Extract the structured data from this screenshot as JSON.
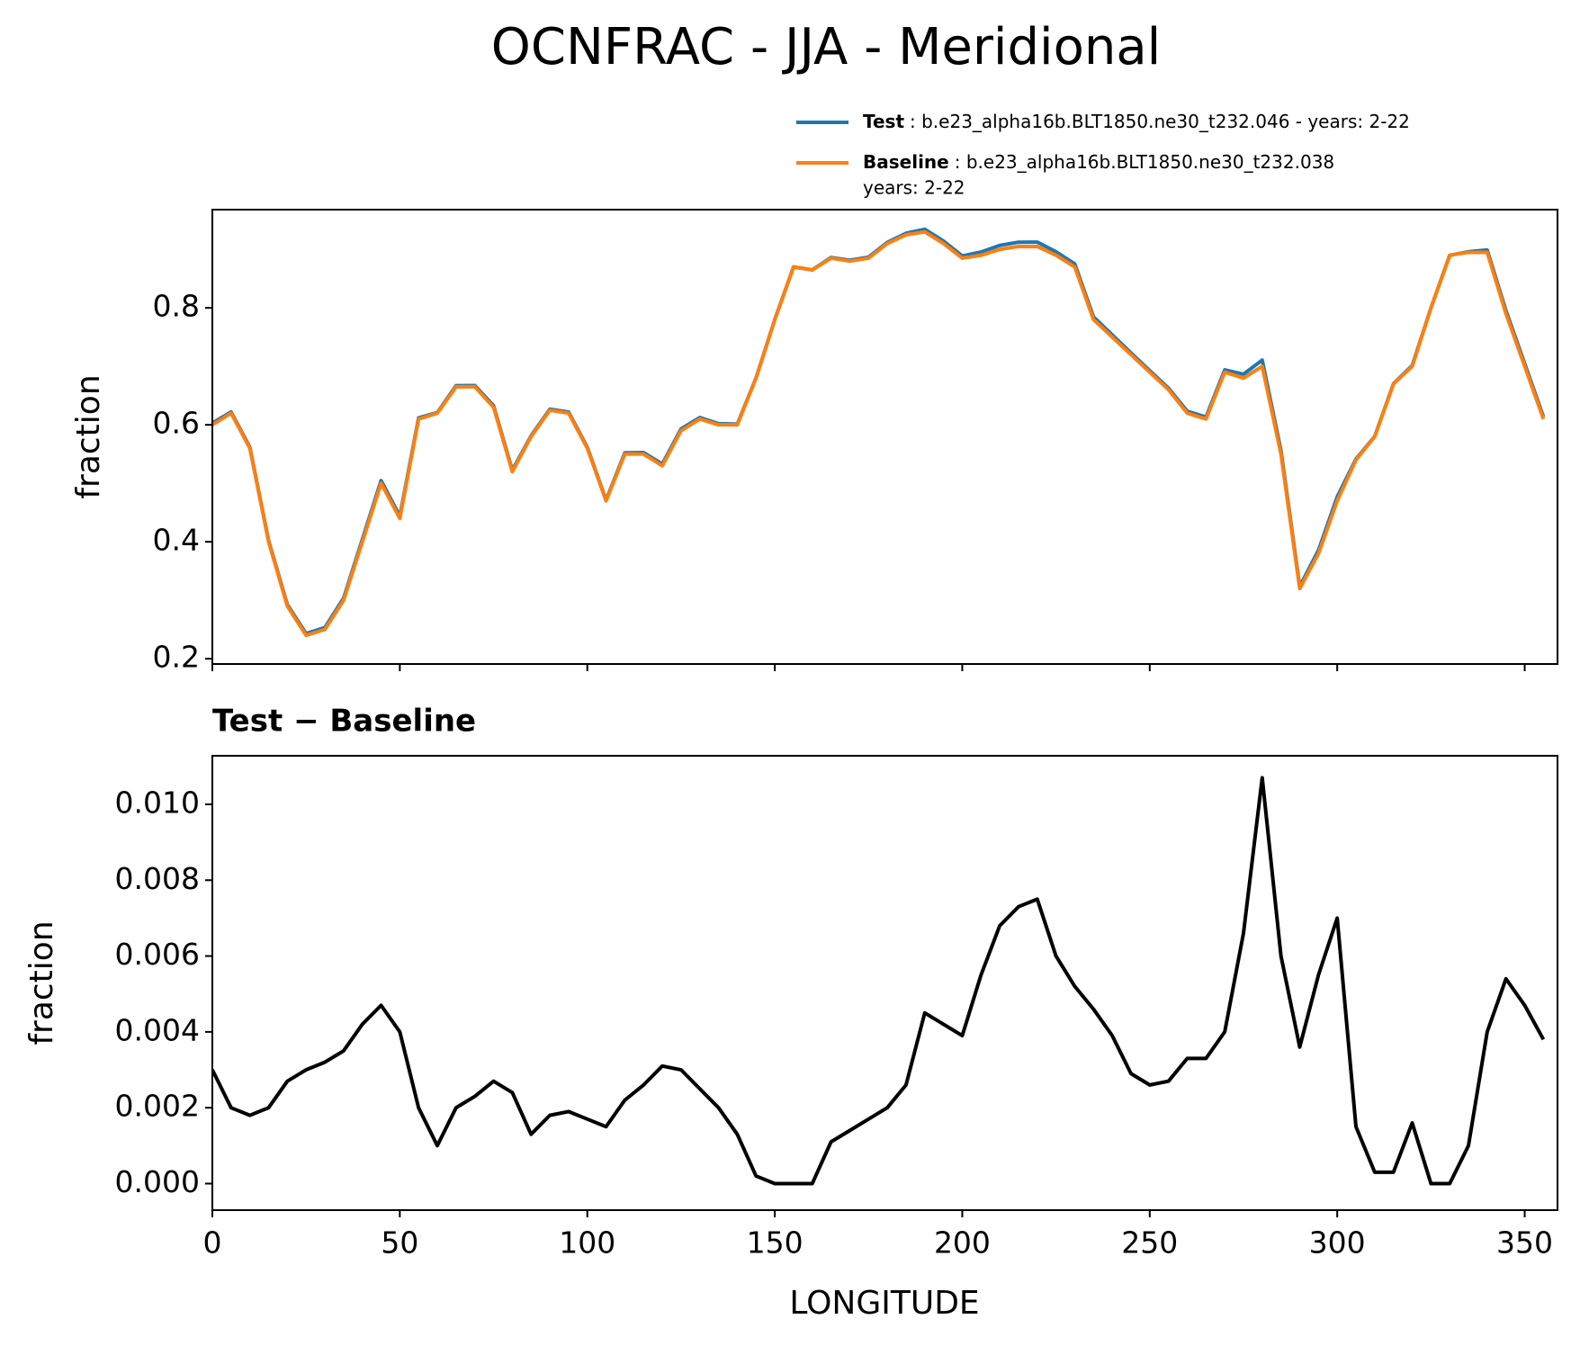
{
  "chart_data": [
    {
      "type": "line",
      "title": "OCNFRAC - JJA - Meridional",
      "ylabel": "fraction",
      "x": [
        0,
        5,
        10,
        15,
        20,
        25,
        30,
        35,
        40,
        45,
        50,
        55,
        60,
        65,
        70,
        75,
        80,
        85,
        90,
        95,
        100,
        105,
        110,
        115,
        120,
        125,
        130,
        135,
        140,
        145,
        150,
        155,
        160,
        165,
        170,
        175,
        180,
        185,
        190,
        195,
        200,
        205,
        210,
        215,
        220,
        225,
        230,
        235,
        240,
        245,
        250,
        255,
        260,
        265,
        270,
        275,
        280,
        285,
        290,
        295,
        300,
        305,
        310,
        315,
        320,
        325,
        330,
        335,
        340,
        345,
        350,
        355
      ],
      "series": [
        {
          "name": "Test",
          "legend_text": [
            ": b.e23_alpha16b.BLT1850.ne30_t232.046 - years: 2-22"
          ],
          "color": "#1f77b4",
          "values": [
            0.603,
            0.622,
            0.5618,
            0.402,
            0.2927,
            0.243,
            0.2532,
            0.3035,
            0.4042,
            0.5047,
            0.444,
            0.612,
            0.621,
            0.667,
            0.6673,
            0.6327,
            0.5224,
            0.5813,
            0.6268,
            0.6219,
            0.5617,
            0.4715,
            0.5522,
            0.5526,
            0.5331,
            0.593,
            0.6125,
            0.602,
            0.6013,
            0.6802,
            0.78,
            0.87,
            0.865,
            0.8861,
            0.8814,
            0.8867,
            0.912,
            0.9276,
            0.9345,
            0.9142,
            0.8889,
            0.8955,
            0.9068,
            0.9123,
            0.9125,
            0.896,
            0.8752,
            0.7846,
            0.7539,
            0.7229,
            0.6926,
            0.6627,
            0.6233,
            0.6133,
            0.694,
            0.6866,
            0.7107,
            0.556,
            0.3236,
            0.3855,
            0.477,
            0.5415,
            0.5803,
            0.6703,
            0.7016,
            0.8,
            0.89,
            0.896,
            0.899,
            0.7954,
            0.7047,
            0.6138
          ]
        },
        {
          "name": "Baseline",
          "legend_text": [
            ": b.e23_alpha16b.BLT1850.ne30_t232.038",
            "years: 2-22"
          ],
          "color": "#ff7f0e",
          "values": [
            0.6,
            0.62,
            0.56,
            0.4,
            0.29,
            0.24,
            0.25,
            0.3,
            0.4,
            0.5,
            0.44,
            0.61,
            0.62,
            0.665,
            0.665,
            0.63,
            0.52,
            0.58,
            0.625,
            0.62,
            0.56,
            0.47,
            0.55,
            0.55,
            0.53,
            0.59,
            0.61,
            0.6,
            0.6,
            0.68,
            0.78,
            0.87,
            0.865,
            0.885,
            0.88,
            0.885,
            0.91,
            0.925,
            0.93,
            0.91,
            0.885,
            0.89,
            0.9,
            0.905,
            0.905,
            0.89,
            0.87,
            0.78,
            0.75,
            0.72,
            0.69,
            0.66,
            0.62,
            0.61,
            0.69,
            0.68,
            0.7,
            0.55,
            0.32,
            0.38,
            0.47,
            0.54,
            0.58,
            0.67,
            0.7,
            0.8,
            0.89,
            0.895,
            0.895,
            0.79,
            0.7,
            0.61
          ]
        }
      ],
      "xlim": [
        0,
        358.75
      ],
      "xticks": [
        0,
        50,
        100,
        150,
        200,
        250,
        300,
        350
      ],
      "ylim": [
        0.191,
        0.968
      ],
      "yticks": [
        0.2,
        0.4,
        0.6,
        0.8
      ]
    },
    {
      "type": "line",
      "subtitle": "Test − Baseline",
      "ylabel": "fraction",
      "xlabel": "LONGITUDE",
      "color": "#000000",
      "x": [
        0,
        5,
        10,
        15,
        20,
        25,
        30,
        35,
        40,
        45,
        50,
        55,
        60,
        65,
        70,
        75,
        80,
        85,
        90,
        95,
        100,
        105,
        110,
        115,
        120,
        125,
        130,
        135,
        140,
        145,
        150,
        155,
        160,
        165,
        170,
        175,
        180,
        185,
        190,
        195,
        200,
        205,
        210,
        215,
        220,
        225,
        230,
        235,
        240,
        245,
        250,
        255,
        260,
        265,
        270,
        275,
        280,
        285,
        290,
        295,
        300,
        305,
        310,
        315,
        320,
        325,
        330,
        335,
        340,
        345,
        350,
        355
      ],
      "values": [
        0.003,
        0.002,
        0.0018,
        0.002,
        0.0027,
        0.003,
        0.0032,
        0.0035,
        0.0042,
        0.0047,
        0.004,
        0.002,
        0.001,
        0.002,
        0.0023,
        0.0027,
        0.0024,
        0.0013,
        0.0018,
        0.0019,
        0.0017,
        0.0015,
        0.0022,
        0.0026,
        0.0031,
        0.003,
        0.0025,
        0.002,
        0.0013,
        0.0002,
        0.0,
        0.0,
        0.0,
        0.0011,
        0.0014,
        0.0017,
        0.002,
        0.0026,
        0.0045,
        0.0042,
        0.0039,
        0.0055,
        0.0068,
        0.0073,
        0.0075,
        0.006,
        0.0052,
        0.0046,
        0.0039,
        0.0029,
        0.0026,
        0.0027,
        0.0033,
        0.0033,
        0.004,
        0.0066,
        0.0107,
        0.006,
        0.0036,
        0.0055,
        0.007,
        0.0015,
        0.0003,
        0.0003,
        0.0016,
        0.0,
        0.0,
        0.001,
        0.004,
        0.0054,
        0.0047,
        0.0038
      ],
      "xlim": [
        0,
        358.75
      ],
      "xticks": [
        0,
        50,
        100,
        150,
        200,
        250,
        300,
        350
      ],
      "ylim": [
        -0.0007,
        0.01128
      ],
      "yticks": [
        {
          "value": 0,
          "label": "0.000"
        },
        {
          "value": 0.002,
          "label": "0.002"
        },
        {
          "value": 0.004,
          "label": "0.004"
        },
        {
          "value": 0.006,
          "label": "0.006"
        },
        {
          "value": 0.008,
          "label": "0.008"
        },
        {
          "value": 0.01,
          "label": "0.010"
        }
      ]
    }
  ]
}
